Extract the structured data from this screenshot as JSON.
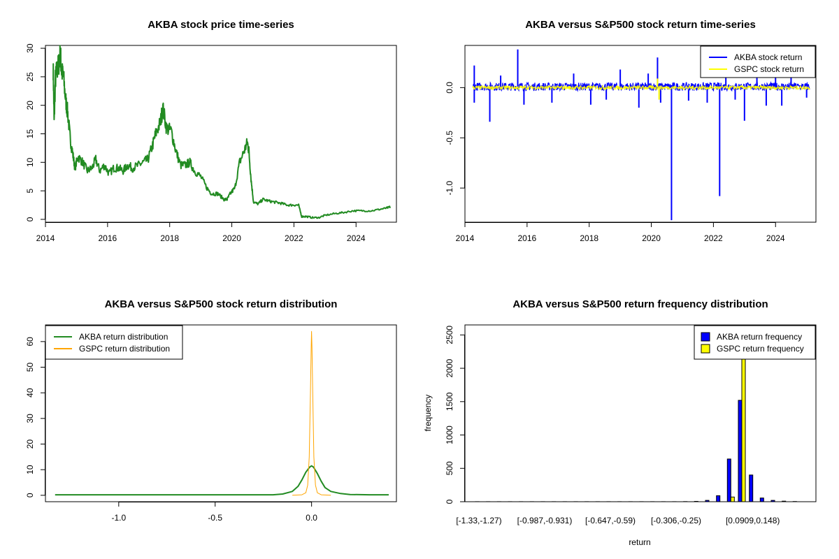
{
  "chart_data": [
    {
      "type": "line",
      "title": "AKBA stock price time-series",
      "xlabel": "",
      "ylabel": "",
      "xlim": [
        2014.0,
        2025.3
      ],
      "ylim": [
        -0.5,
        30.5
      ],
      "xticks": [
        2014,
        2016,
        2018,
        2020,
        2022,
        2024
      ],
      "xtick_labels": [
        "2014",
        "2016",
        "2018",
        "2020",
        "2022",
        "2024"
      ],
      "yticks": [
        0,
        5,
        10,
        15,
        20,
        25,
        30
      ],
      "ytick_labels": [
        "0",
        "5",
        "10",
        "15",
        "20",
        "25",
        "30"
      ],
      "series": [
        {
          "color": "#228B22",
          "x": [
            2014.25,
            2014.28,
            2014.32,
            2014.36,
            2014.42,
            2014.48,
            2014.52,
            2014.58,
            2014.65,
            2014.72,
            2014.8,
            2014.88,
            2014.95,
            2015.05,
            2015.2,
            2015.35,
            2015.5,
            2015.62,
            2015.75,
            2015.9,
            2016.05,
            2016.2,
            2016.35,
            2016.5,
            2016.65,
            2016.8,
            2017.0,
            2017.15,
            2017.3,
            2017.45,
            2017.55,
            2017.7,
            2017.78,
            2017.9,
            2018.05,
            2018.2,
            2018.35,
            2018.5,
            2018.65,
            2018.8,
            2019.0,
            2019.2,
            2019.35,
            2019.55,
            2019.75,
            2019.85,
            2019.95,
            2020.1,
            2020.25,
            2020.4,
            2020.5,
            2020.55,
            2020.62,
            2020.7,
            2020.85,
            2021.0,
            2021.2,
            2021.4,
            2021.6,
            2021.8,
            2022.0,
            2022.15,
            2022.25,
            2022.4,
            2022.6,
            2022.8,
            2023.0,
            2023.3,
            2023.6,
            2023.9,
            2024.2,
            2024.5,
            2024.8,
            2025.0,
            2025.1
          ],
          "y": [
            26.5,
            17.0,
            24.5,
            26.0,
            27.0,
            29.0,
            26.0,
            25.0,
            21.0,
            18.5,
            14.0,
            11.5,
            9.0,
            11.0,
            10.0,
            8.5,
            9.0,
            10.5,
            8.5,
            9.5,
            8.0,
            9.0,
            9.0,
            8.5,
            9.5,
            9.0,
            9.5,
            10.0,
            10.5,
            13.0,
            15.0,
            17.0,
            19.5,
            16.0,
            15.5,
            12.0,
            9.5,
            9.5,
            10.0,
            8.5,
            7.5,
            5.5,
            4.5,
            4.5,
            3.5,
            3.5,
            4.5,
            5.5,
            10.0,
            12.0,
            13.5,
            12.0,
            7.0,
            3.0,
            2.7,
            3.5,
            3.2,
            3.0,
            2.8,
            2.5,
            2.5,
            2.5,
            0.5,
            0.5,
            0.3,
            0.3,
            0.7,
            1.0,
            1.2,
            1.5,
            1.5,
            1.5,
            1.8,
            2.0,
            2.2
          ]
        }
      ]
    },
    {
      "type": "line",
      "title": "AKBA versus S&P500 stock return time-series",
      "xlabel": "",
      "ylabel": "",
      "xlim": [
        2014.0,
        2025.3
      ],
      "ylim": [
        -1.34,
        0.42
      ],
      "xticks": [
        2014,
        2016,
        2018,
        2020,
        2022,
        2024
      ],
      "xtick_labels": [
        "2014",
        "2016",
        "2018",
        "2020",
        "2022",
        "2024"
      ],
      "yticks": [
        -1.0,
        -0.5,
        0.0
      ],
      "ytick_labels": [
        "-1.0",
        "-0.5",
        "0.0"
      ],
      "legend": {
        "position": "top-right",
        "entries": [
          "AKBA stock return",
          "GSPC stock return"
        ]
      },
      "series": [
        {
          "name": "AKBA stock return",
          "color": "#0000FF",
          "band": [
            -0.03,
            0.05
          ],
          "spikes": [
            [
              2014.3,
              0.22
            ],
            [
              2014.3,
              -0.15
            ],
            [
              2014.8,
              -0.34
            ],
            [
              2015.15,
              0.12
            ],
            [
              2015.7,
              0.38
            ],
            [
              2015.9,
              -0.17
            ],
            [
              2016.8,
              -0.15
            ],
            [
              2017.5,
              0.14
            ],
            [
              2018.05,
              -0.17
            ],
            [
              2018.55,
              -0.12
            ],
            [
              2019.0,
              0.18
            ],
            [
              2019.6,
              -0.2
            ],
            [
              2019.9,
              0.14
            ],
            [
              2020.2,
              0.3
            ],
            [
              2020.3,
              -0.15
            ],
            [
              2020.65,
              -1.32
            ],
            [
              2021.2,
              -0.13
            ],
            [
              2021.8,
              -0.15
            ],
            [
              2022.2,
              -1.08
            ],
            [
              2022.4,
              0.15
            ],
            [
              2022.7,
              -0.12
            ],
            [
              2023.0,
              -0.33
            ],
            [
              2023.4,
              0.3
            ],
            [
              2023.7,
              -0.18
            ],
            [
              2024.0,
              0.18
            ],
            [
              2024.2,
              -0.18
            ],
            [
              2024.5,
              0.12
            ],
            [
              2025.0,
              -0.1
            ]
          ]
        },
        {
          "name": "GSPC stock return",
          "color": "#FFFF00",
          "band": [
            -0.02,
            0.02
          ],
          "spikes": [
            [
              2020.2,
              0.09
            ],
            [
              2020.25,
              -0.12
            ]
          ]
        }
      ]
    },
    {
      "type": "line",
      "title": "AKBA versus S&P500 stock return distribution",
      "xlabel": "",
      "ylabel": "",
      "xlim": [
        -1.38,
        0.44
      ],
      "ylim": [
        -2.5,
        66.5
      ],
      "xticks": [
        -1.0,
        -0.5,
        0.0
      ],
      "xtick_labels": [
        "-1.0",
        "-0.5",
        "0.0"
      ],
      "yticks": [
        0,
        10,
        20,
        30,
        40,
        50,
        60
      ],
      "ytick_labels": [
        "0",
        "10",
        "20",
        "30",
        "40",
        "50",
        "60"
      ],
      "legend": {
        "position": "top-left",
        "entries": [
          "AKBA return distribution",
          "GSPC return distribution"
        ]
      },
      "series": [
        {
          "name": "AKBA return distribution",
          "color": "#228B22",
          "x": [
            -1.33,
            -1.0,
            -0.5,
            -0.2,
            -0.15,
            -0.1,
            -0.07,
            -0.05,
            -0.03,
            -0.01,
            0.0,
            0.01,
            0.03,
            0.05,
            0.07,
            0.1,
            0.15,
            0.2,
            0.3,
            0.4
          ],
          "y": [
            0.2,
            0.2,
            0.2,
            0.2,
            0.5,
            1.5,
            3.5,
            6.0,
            9.0,
            11.0,
            11.5,
            11.0,
            8.5,
            5.5,
            3.0,
            1.5,
            0.7,
            0.3,
            0.2,
            0.2
          ]
        },
        {
          "name": "GSPC return distribution",
          "color": "#FFA500",
          "x": [
            -0.1,
            -0.05,
            -0.03,
            -0.02,
            -0.012,
            -0.006,
            -0.002,
            0.0,
            0.002,
            0.006,
            0.012,
            0.02,
            0.03,
            0.05,
            0.1
          ],
          "y": [
            0.0,
            0.2,
            1.0,
            4.0,
            15.0,
            40.0,
            58.0,
            64.0,
            58.0,
            40.0,
            15.0,
            4.0,
            1.0,
            0.2,
            0.0
          ]
        }
      ]
    },
    {
      "type": "bar",
      "title": "AKBA versus S&P500 return frequency distribution",
      "xlabel": "return",
      "ylabel": "frequency",
      "ylim": [
        0,
        2650
      ],
      "yticks": [
        0,
        500,
        1000,
        1500,
        2000,
        2500
      ],
      "ytick_labels": [
        "0",
        "500",
        "1000",
        "1500",
        "2000",
        "2500"
      ],
      "xtick_labels_shown": [
        "[-1.33,-1.27)",
        "[-0.987,-0.931)",
        "[-0.647,-0.59)",
        "[-0.306,-0.25)",
        "[0.0909,0.148)"
      ],
      "legend": {
        "position": "top-right",
        "entries": [
          "AKBA return frequency",
          "GSPC return frequency"
        ]
      },
      "series": [
        {
          "name": "AKBA return frequency",
          "color": "#0000FF",
          "values": [
            1,
            1,
            1,
            1,
            1,
            1,
            1,
            1,
            1,
            1,
            1,
            1,
            1,
            1,
            1,
            1,
            1,
            1,
            1,
            2,
            5,
            20,
            90,
            640,
            1520,
            400,
            55,
            20,
            8,
            3
          ]
        },
        {
          "name": "GSPC return frequency",
          "color": "#FFFF00",
          "values": [
            0,
            0,
            0,
            0,
            0,
            0,
            0,
            0,
            0,
            0,
            0,
            0,
            0,
            0,
            0,
            0,
            0,
            0,
            0,
            0,
            0,
            0,
            0,
            70,
            2650,
            0,
            0,
            0,
            0,
            0
          ]
        }
      ]
    }
  ]
}
